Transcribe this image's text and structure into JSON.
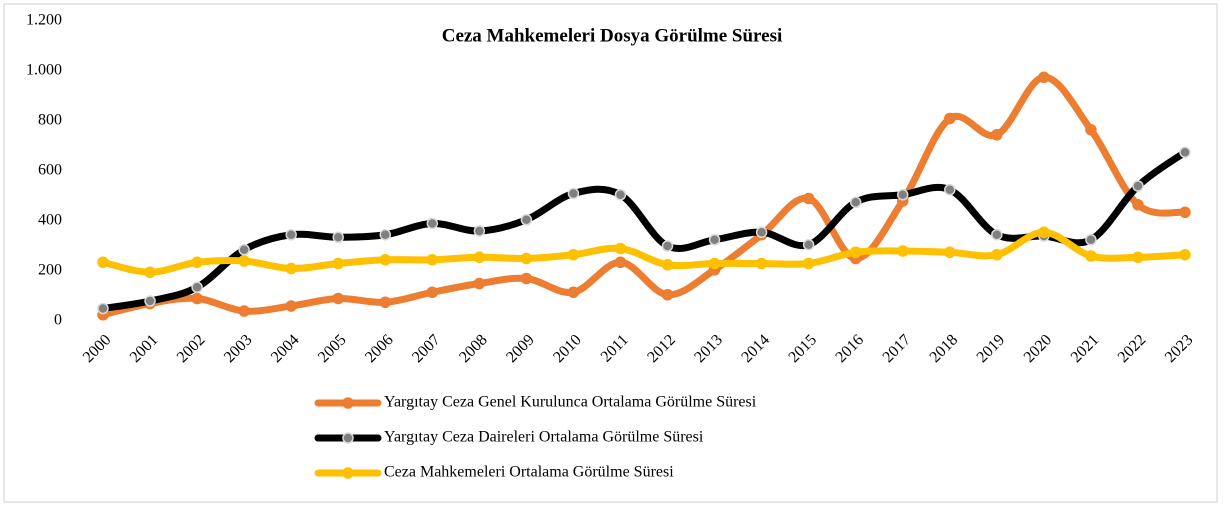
{
  "chart_data": {
    "type": "line",
    "title": "Ceza Mahkemeleri  Dosya Görülme Süresi",
    "categories": [
      "2000",
      "2001",
      "2002",
      "2003",
      "2004",
      "2005",
      "2006",
      "2007",
      "2008",
      "2009",
      "2010",
      "2011",
      "2012",
      "2013",
      "2014",
      "2015",
      "2016",
      "2017",
      "2018",
      "2019",
      "2020",
      "2021",
      "2022",
      "2023"
    ],
    "series": [
      {
        "name": "Yargıtay Ceza Genel Kurulunca Ortalama Görülme Süresi",
        "color": "#ed7d31",
        "marker_fill": "#ed7d31",
        "values": [
          25,
          70,
          90,
          40,
          60,
          90,
          75,
          115,
          150,
          170,
          115,
          235,
          105,
          205,
          345,
          490,
          250,
          480,
          810,
          745,
          975,
          765,
          465,
          435
        ]
      },
      {
        "name": "Yargıtay Ceza Daireleri Ortalama Görülme Süresi",
        "color": "#000000",
        "marker_fill": "#7f7f7f",
        "values": [
          50,
          80,
          135,
          285,
          345,
          335,
          345,
          390,
          360,
          405,
          510,
          505,
          300,
          325,
          355,
          305,
          475,
          505,
          525,
          345,
          340,
          325,
          540,
          675
        ]
      },
      {
        "name": "Ceza Mahkemeleri Ortalama Görülme Süresi",
        "color": "#ffc000",
        "marker_fill": "#ffc000",
        "values": [
          235,
          195,
          235,
          240,
          210,
          230,
          245,
          245,
          255,
          250,
          265,
          290,
          225,
          230,
          230,
          230,
          275,
          280,
          275,
          265,
          355,
          260,
          255,
          265
        ]
      }
    ],
    "ylim": [
      0,
      1200
    ],
    "yticks": [
      0,
      200,
      400,
      600,
      800,
      {
        "value": 1000,
        "label": "1.000"
      },
      {
        "value": 1200,
        "label": "1.200"
      }
    ],
    "legend": "bottom"
  }
}
